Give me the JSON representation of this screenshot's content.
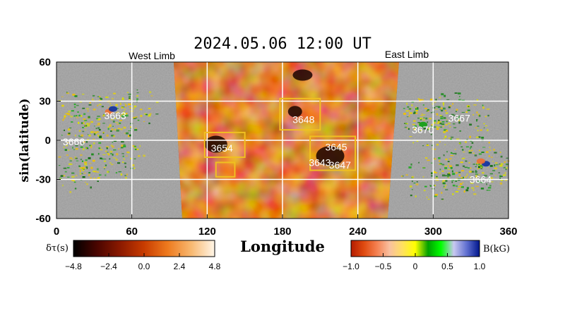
{
  "title": "2024.05.06  12:00  UT",
  "west_limb": "West Limb",
  "east_limb": "East Limb",
  "x_axis": {
    "label": "Longitude",
    "ticks": [
      "0",
      "60",
      "120",
      "180",
      "240",
      "300",
      "360"
    ],
    "range": [
      0,
      360
    ]
  },
  "y_axis": {
    "label": "sin(latitude)",
    "ticks": [
      "60",
      "30",
      "0",
      "-30",
      "-60"
    ],
    "range": [
      -60,
      60
    ]
  },
  "seismic_region": {
    "lon_start": 90,
    "lon_end": 275
  },
  "boxes": [
    {
      "lon": [
        178,
        210
      ],
      "lat": [
        8,
        32
      ]
    },
    {
      "lon": [
        118,
        150
      ],
      "lat": [
        -13,
        6
      ]
    },
    {
      "lon": [
        127,
        142
      ],
      "lat": [
        -28,
        -17
      ]
    },
    {
      "lon": [
        202,
        238
      ],
      "lat": [
        -23,
        3
      ]
    }
  ],
  "regions": [
    {
      "label": "3663",
      "lon": 38,
      "lat": 19
    },
    {
      "label": "3666",
      "lon": 5,
      "lat": -1
    },
    {
      "label": "3648",
      "lon": 188,
      "lat": 16
    },
    {
      "label": "3654",
      "lon": 123,
      "lat": -6
    },
    {
      "label": "3645",
      "lon": 214,
      "lat": -5
    },
    {
      "label": "3643",
      "lon": 201,
      "lat": -17
    },
    {
      "label": "3647",
      "lon": 217,
      "lat": -19
    },
    {
      "label": "3667",
      "lon": 312,
      "lat": 17
    },
    {
      "label": "3670",
      "lon": 283,
      "lat": 8
    },
    {
      "label": "3664",
      "lon": 329,
      "lat": -30
    }
  ],
  "colorbar_left": {
    "label": "δτ(s)",
    "ticks": [
      "−4.8",
      "−2.4",
      "0.0",
      "2.4",
      "4.8"
    ],
    "colors": [
      "#000000",
      "#4a0500",
      "#8c1a00",
      "#c83c00",
      "#ee7a1e",
      "#f8b870",
      "#fff6e8"
    ]
  },
  "colorbar_right": {
    "label": "B(kG)",
    "ticks": [
      "−1.0",
      "−0.5",
      "0",
      "0.5",
      "1.0"
    ],
    "colors": [
      "#b31c00",
      "#e04a10",
      "#f48050",
      "#f9c0a0",
      "#ffe060",
      "#ffff00",
      "#00a000",
      "#00ff00",
      "#c8c8f0",
      "#6070d0",
      "#00158c"
    ]
  },
  "colors": {
    "background_gray": "#9a9a9a",
    "box": "#f0c020",
    "grid": "#ffffff"
  }
}
